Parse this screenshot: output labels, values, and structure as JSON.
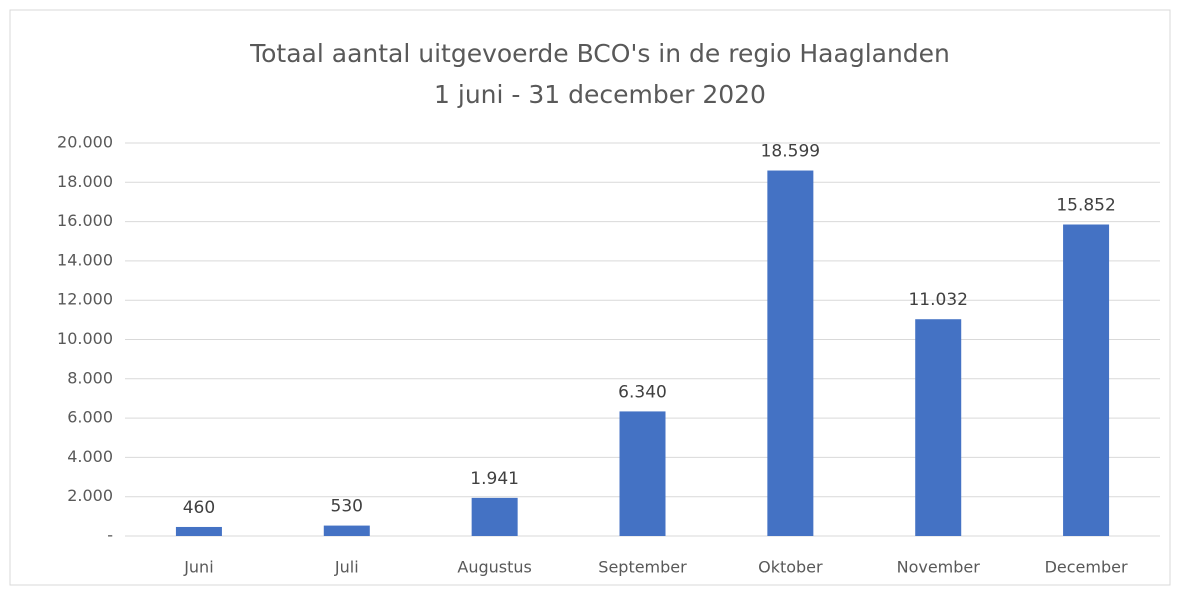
{
  "chart_data": {
    "type": "bar",
    "title": "Totaal aantal uitgevoerde BCO's in de regio Haaglanden",
    "subtitle": "1 juni - 31 december 2020",
    "categories": [
      "Juni",
      "Juli",
      "Augustus",
      "September",
      "Oktober",
      "November",
      "December"
    ],
    "values": [
      460,
      530,
      1941,
      6340,
      18599,
      11032,
      15852
    ],
    "value_labels": [
      "460",
      "530",
      "1.941",
      "6.340",
      "18.599",
      "11.032",
      "15.852"
    ],
    "color": "#4472c4",
    "ylim": [
      0,
      20000
    ],
    "yticks": [
      {
        "value": 0,
        "label": "-"
      },
      {
        "value": 2000,
        "label": "2.000"
      },
      {
        "value": 4000,
        "label": "4.000"
      },
      {
        "value": 6000,
        "label": "6.000"
      },
      {
        "value": 8000,
        "label": "8.000"
      },
      {
        "value": 10000,
        "label": "10.000"
      },
      {
        "value": 12000,
        "label": "12.000"
      },
      {
        "value": 14000,
        "label": "14.000"
      },
      {
        "value": 16000,
        "label": "16.000"
      },
      {
        "value": 18000,
        "label": "18.000"
      },
      {
        "value": 20000,
        "label": "20.000"
      }
    ],
    "grid": true
  }
}
